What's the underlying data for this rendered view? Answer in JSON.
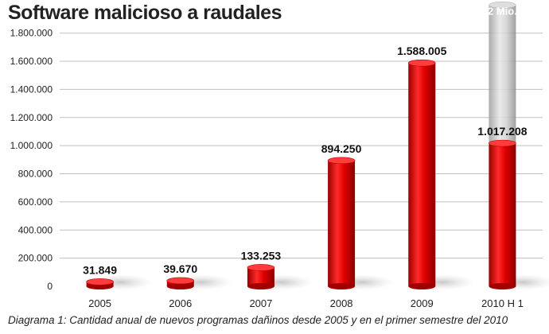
{
  "chart_data": {
    "type": "bar",
    "title": "Software malicioso a raudales",
    "caption": "Diagrama 1: Cantidad anual de nuevos programas dañinos desde 2005 y en el primer semestre del 2010",
    "categories": [
      "2005",
      "2006",
      "2007",
      "2008",
      "2009",
      "2010 H 1"
    ],
    "values": [
      31849,
      39670,
      133253,
      894250,
      1588005,
      1017208
    ],
    "value_labels": [
      "31.849",
      "39.670",
      "133.253",
      "894.250",
      "1.588.005",
      "1.017.208"
    ],
    "projection": {
      "category": "2010 H 1",
      "value": 2000000,
      "label": "2 Mio."
    },
    "ylim": [
      0,
      1900000
    ],
    "yticks": [
      0,
      200000,
      400000,
      600000,
      800000,
      1000000,
      1200000,
      1400000,
      1600000,
      1800000
    ],
    "ytick_labels": [
      "0",
      "200.000",
      "400.000",
      "600.000",
      "800.000",
      "1.000.000",
      "1.200.000",
      "1.400.000",
      "1.600.000",
      "1.800.000"
    ],
    "grid": true,
    "colors": {
      "bar": "#e00000",
      "bar_dark": "#a00000",
      "projection": "#c8c8c8",
      "grid": "#bfbfbf"
    }
  }
}
